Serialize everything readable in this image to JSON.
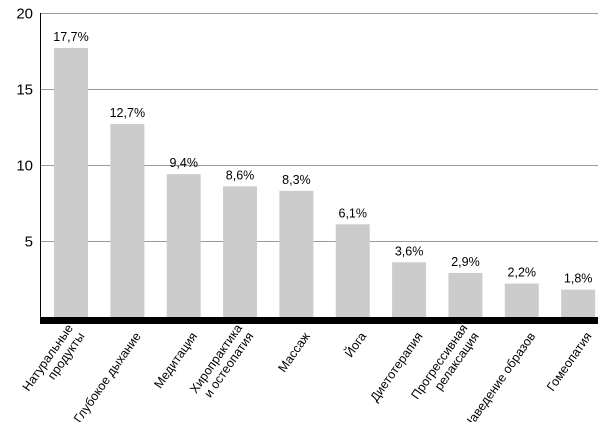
{
  "chart_data": {
    "type": "bar",
    "categories": [
      [
        "Натуральные",
        "продукты"
      ],
      [
        "Глубокое дыхание"
      ],
      [
        "Медитация"
      ],
      [
        "Хиропрактика",
        "и остеопатия"
      ],
      [
        "Массаж"
      ],
      [
        "Йога"
      ],
      [
        "Диетотерапия"
      ],
      [
        "Прогрессивная",
        "релаксация"
      ],
      [
        "Наведение образов"
      ],
      [
        "Гомеопатия"
      ]
    ],
    "values": [
      17.7,
      12.7,
      9.4,
      8.6,
      8.3,
      6.1,
      3.6,
      2.9,
      2.2,
      1.8
    ],
    "data_labels": [
      "17,7%",
      "12,7%",
      "9,4%",
      "8,6%",
      "8,3%",
      "6,1%",
      "3,6%",
      "2,9%",
      "2,2%",
      "1,8%"
    ],
    "y_ticks": [
      5,
      10,
      15,
      20
    ],
    "ylim": [
      0,
      20
    ],
    "grid": true,
    "bar_color": "#cccccc",
    "grid_color": "#9a9a9a",
    "axis_color": "#000000"
  }
}
